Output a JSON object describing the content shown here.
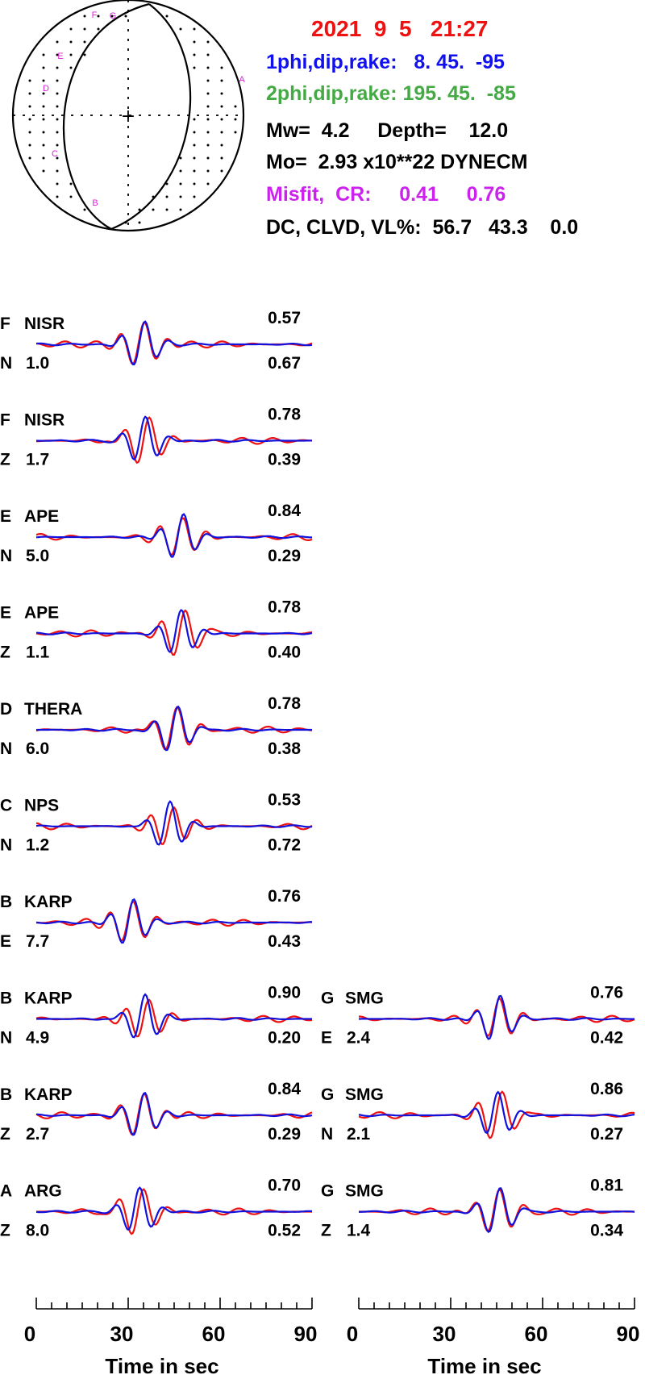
{
  "header": {
    "datetime": "2021  9  5   21:27",
    "plane1": "1phi,dip,rake:   8. 45.  -95",
    "plane2": "2phi,dip,rake: 195. 45.  -85",
    "mw_depth": "Mw=  4.2     Depth=    12.0",
    "moment": "Mo=  2.93 x10**22 DYNECM",
    "misfit": "Misfit,  CR:     0.41     0.76",
    "dc_clvd": "DC, CLVD, VL%:  56.7   43.3    0.0"
  },
  "colors": {
    "datetime": "#ee1111",
    "plane1": "#1111ee",
    "plane2": "#44aa44",
    "misfit": "#cc22ee",
    "observed": "#ee1111",
    "synthetic": "#1111dd",
    "station_marker": "#dd22dd"
  },
  "beachball": {
    "station_markers": [
      "F",
      "G",
      "E",
      "D",
      "C",
      "B",
      "A"
    ]
  },
  "traces": [
    {
      "col": 0,
      "row": 0,
      "letter": "F",
      "station": "NISR",
      "comp": "N",
      "value": "1.0",
      "cr": "0.57",
      "misfit": "0.67"
    },
    {
      "col": 0,
      "row": 1,
      "letter": "F",
      "station": "NISR",
      "comp": "Z",
      "value": "1.7",
      "cr": "0.78",
      "misfit": "0.39"
    },
    {
      "col": 0,
      "row": 2,
      "letter": "E",
      "station": "APE",
      "comp": "N",
      "value": "5.0",
      "cr": "0.84",
      "misfit": "0.29"
    },
    {
      "col": 0,
      "row": 3,
      "letter": "E",
      "station": "APE",
      "comp": "Z",
      "value": "1.1",
      "cr": "0.78",
      "misfit": "0.40"
    },
    {
      "col": 0,
      "row": 4,
      "letter": "D",
      "station": "THERA",
      "comp": "N",
      "value": "6.0",
      "cr": "0.78",
      "misfit": "0.38"
    },
    {
      "col": 0,
      "row": 5,
      "letter": "C",
      "station": "NPS",
      "comp": "N",
      "value": "1.2",
      "cr": "0.53",
      "misfit": "0.72"
    },
    {
      "col": 0,
      "row": 6,
      "letter": "B",
      "station": "KARP",
      "comp": "E",
      "value": "7.7",
      "cr": "0.76",
      "misfit": "0.43"
    },
    {
      "col": 0,
      "row": 7,
      "letter": "B",
      "station": "KARP",
      "comp": "N",
      "value": "4.9",
      "cr": "0.90",
      "misfit": "0.20"
    },
    {
      "col": 0,
      "row": 8,
      "letter": "B",
      "station": "KARP",
      "comp": "Z",
      "value": "2.7",
      "cr": "0.84",
      "misfit": "0.29"
    },
    {
      "col": 0,
      "row": 9,
      "letter": "A",
      "station": "ARG",
      "comp": "Z",
      "value": "8.0",
      "cr": "0.70",
      "misfit": "0.52"
    },
    {
      "col": 1,
      "row": 7,
      "letter": "G",
      "station": "SMG",
      "comp": "E",
      "value": "2.4",
      "cr": "0.76",
      "misfit": "0.42"
    },
    {
      "col": 1,
      "row": 8,
      "letter": "G",
      "station": "SMG",
      "comp": "N",
      "value": "2.1",
      "cr": "0.86",
      "misfit": "0.27"
    },
    {
      "col": 1,
      "row": 9,
      "letter": "G",
      "station": "SMG",
      "comp": "Z",
      "value": "1.4",
      "cr": "0.81",
      "misfit": "0.34"
    }
  ],
  "axis": {
    "ticks": [
      "0",
      "30",
      "60",
      "90"
    ],
    "label": "Time  in sec"
  }
}
